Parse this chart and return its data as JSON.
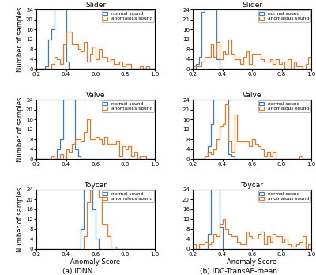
{
  "machine_types": [
    "Slider",
    "Valve",
    "Toycar"
  ],
  "xlabel": "Anomaly Score",
  "ylabel": "Number of samples",
  "xlim": [
    0.2,
    1.0
  ],
  "ylim": [
    0,
    24
  ],
  "yticks": [
    0,
    4,
    8,
    12,
    16,
    20,
    24
  ],
  "xticks": [
    0.2,
    0.4,
    0.6,
    0.8,
    1.0
  ],
  "caption_left": "(a) IDNN",
  "caption_right": "(b) IDC-TransAE-mean",
  "normal_color": "#3a7bbf",
  "anomalous_color": "#e87722",
  "nbins": 40,
  "left": {
    "Slider": {
      "normal": {
        "components": [
          {
            "mean": 0.335,
            "std": 0.025,
            "n": 130
          },
          {
            "mean": 0.375,
            "std": 0.02,
            "n": 80
          }
        ]
      },
      "anomalous": {
        "components": [
          {
            "mean": 0.42,
            "std": 0.06,
            "n": 60
          },
          {
            "mean": 0.6,
            "std": 0.12,
            "n": 100
          }
        ]
      }
    },
    "Valve": {
      "normal": {
        "components": [
          {
            "mean": 0.405,
            "std": 0.018,
            "n": 120
          },
          {
            "mean": 0.435,
            "std": 0.018,
            "n": 80
          }
        ]
      },
      "anomalous": {
        "components": [
          {
            "mean": 0.5,
            "std": 0.07,
            "n": 60
          },
          {
            "mean": 0.68,
            "std": 0.12,
            "n": 100
          }
        ]
      }
    },
    "Toycar": {
      "normal": {
        "components": [
          {
            "mean": 0.555,
            "std": 0.022,
            "n": 200
          }
        ]
      },
      "anomalous": {
        "components": [
          {
            "mean": 0.575,
            "std": 0.03,
            "n": 80
          },
          {
            "mean": 0.63,
            "std": 0.04,
            "n": 80
          }
        ]
      }
    }
  },
  "right": {
    "Slider": {
      "normal": {
        "components": [
          {
            "mean": 0.295,
            "std": 0.022,
            "n": 140
          },
          {
            "mean": 0.325,
            "std": 0.02,
            "n": 90
          }
        ]
      },
      "anomalous": {
        "components": [
          {
            "mean": 0.38,
            "std": 0.06,
            "n": 50
          },
          {
            "mean": 0.6,
            "std": 0.18,
            "n": 110
          }
        ]
      }
    },
    "Valve": {
      "normal": {
        "components": [
          {
            "mean": 0.355,
            "std": 0.02,
            "n": 80
          },
          {
            "mean": 0.39,
            "std": 0.02,
            "n": 90
          },
          {
            "mean": 0.415,
            "std": 0.015,
            "n": 60
          }
        ]
      },
      "anomalous": {
        "components": [
          {
            "mean": 0.42,
            "std": 0.05,
            "n": 70
          },
          {
            "mean": 0.57,
            "std": 0.1,
            "n": 90
          }
        ]
      }
    },
    "Toycar": {
      "normal": {
        "components": [
          {
            "mean": 0.348,
            "std": 0.015,
            "n": 240
          }
        ]
      },
      "anomalous": {
        "components": [
          {
            "mean": 0.4,
            "std": 0.06,
            "n": 50
          },
          {
            "mean": 0.65,
            "std": 0.18,
            "n": 110
          }
        ]
      }
    }
  }
}
